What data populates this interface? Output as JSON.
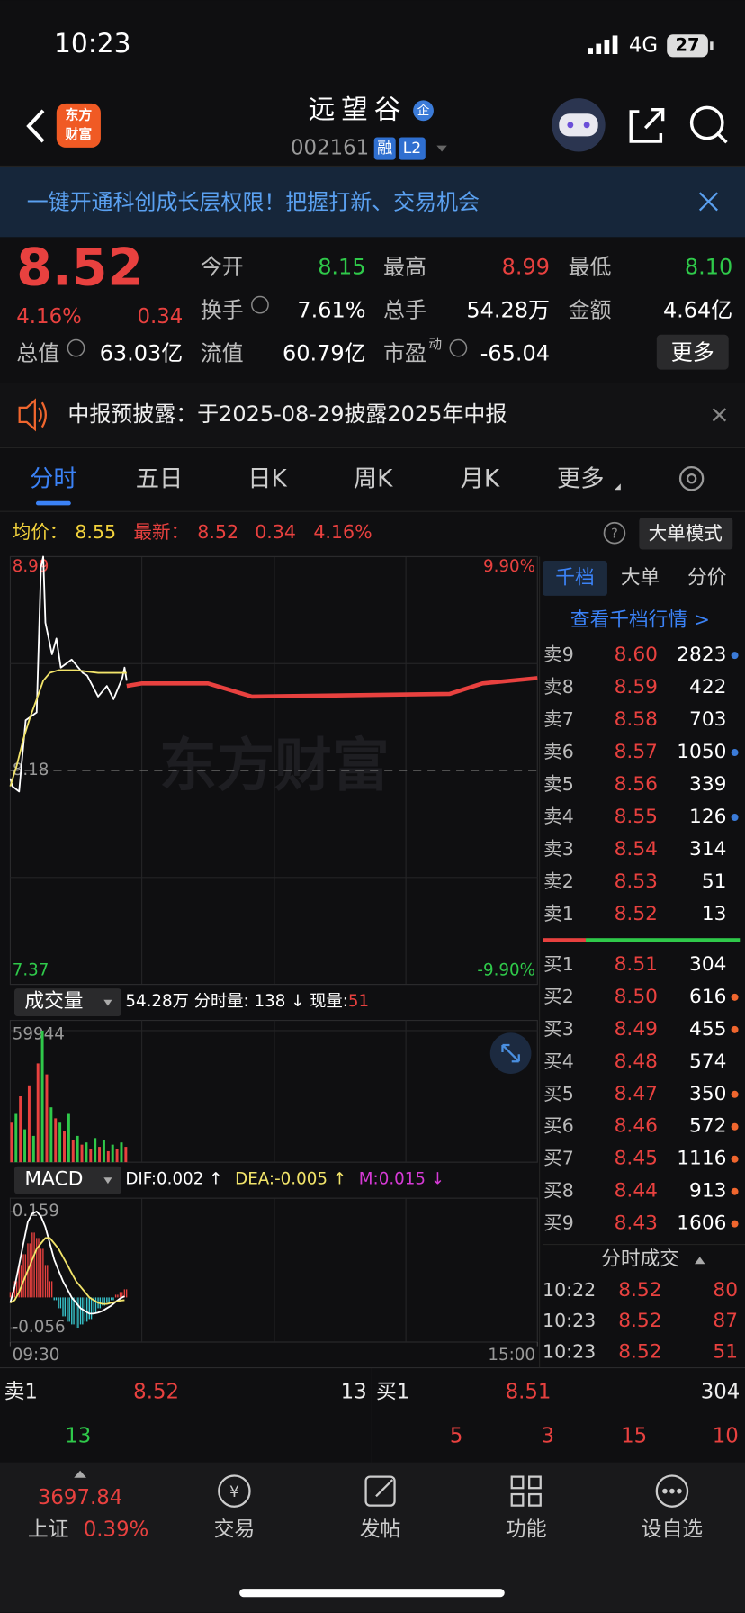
{
  "status": {
    "time": "10:23",
    "network": "4G",
    "battery": "27"
  },
  "header": {
    "logo": [
      "东方",
      "财富"
    ],
    "name": "远望谷",
    "badge": "企",
    "code": "002161",
    "tags": [
      "融",
      "L2"
    ]
  },
  "banner": "一键开通科创成长层权限！把握打新、交易机会",
  "quote": {
    "price": "8.52",
    "pct": "4.16%",
    "change": "0.34",
    "more": "更多",
    "fields": [
      {
        "label": "今开",
        "value": "8.15",
        "color": "#2fc94a"
      },
      {
        "label": "最高",
        "value": "8.99",
        "color": "#e8413f"
      },
      {
        "label": "最低",
        "value": "8.10",
        "color": "#2fc94a"
      },
      {
        "label": "换手",
        "value": "7.61%",
        "color": "#ffffff"
      },
      {
        "label": "总手",
        "value": "54.28万",
        "color": "#ffffff"
      },
      {
        "label": "金额",
        "value": "4.64亿",
        "color": "#ffffff"
      },
      {
        "label": "总值",
        "value": "63.03亿",
        "color": "#ffffff"
      },
      {
        "label": "流值",
        "value": "60.79亿",
        "color": "#ffffff"
      },
      {
        "label": "市盈",
        "sup": "动",
        "value": "-65.04",
        "color": "#ffffff"
      }
    ]
  },
  "notice": "中报预披露：于2025-08-29披露2025年中报",
  "tabs": [
    "分时",
    "五日",
    "日K",
    "周K",
    "月K",
    "更多"
  ],
  "info": {
    "avg_label": "均价：",
    "avg": "8.55",
    "last_label": "最新：",
    "last": "8.52",
    "change": "0.34",
    "pct": "4.16%",
    "mode": "大单模式"
  },
  "chart_data": [
    {
      "type": "line",
      "watermark": "东方财富",
      "xlim": [
        0,
        240
      ],
      "ylim": [
        7.37,
        8.99
      ],
      "yticks": [
        8.99,
        8.18,
        7.37
      ],
      "y2lim": [
        -9.9,
        9.9
      ],
      "y2ticks": [
        {
          "value": 9.9,
          "label": "9.90%"
        },
        {
          "value": -9.9,
          "label": "-9.90%"
        }
      ],
      "series": [
        {
          "color": "#ffffff",
          "x": [
            0,
            1,
            4,
            7,
            12,
            14,
            15,
            16,
            19,
            21,
            23,
            28,
            33,
            35,
            40,
            44,
            47,
            51,
            52,
            53
          ],
          "values": [
            8.15,
            8.12,
            8.1,
            8.37,
            8.4,
            8.95,
            8.99,
            8.74,
            8.62,
            8.68,
            8.57,
            8.6,
            8.55,
            8.54,
            8.46,
            8.5,
            8.45,
            8.53,
            8.57,
            8.52
          ]
        },
        {
          "color": "#f2e46a",
          "x": [
            0,
            3,
            6,
            9,
            12,
            15,
            18,
            22,
            30,
            40,
            53
          ],
          "values": [
            8.12,
            8.2,
            8.3,
            8.38,
            8.45,
            8.52,
            8.55,
            8.56,
            8.56,
            8.55,
            8.55
          ]
        },
        {
          "color": "#e8413f",
          "x": [
            53,
            60,
            90,
            110,
            200,
            215,
            240
          ],
          "values": [
            8.5,
            8.51,
            8.51,
            8.46,
            8.47,
            8.51,
            8.53
          ]
        }
      ]
    },
    {
      "type": "bar",
      "title": "成交量",
      "summary": "54.28万 分时量: 138 ↓ 现量: ",
      "current": "51",
      "xlim": [
        0,
        240
      ],
      "ylim": [
        0,
        59944
      ],
      "yticks": [
        59944
      ],
      "x": [
        0,
        2,
        4,
        6,
        8,
        10,
        12,
        14,
        16,
        18,
        20,
        22,
        24,
        26,
        28,
        30,
        32,
        34,
        36,
        38,
        40,
        42,
        44,
        46,
        48,
        50,
        52
      ],
      "values": [
        18000,
        22000,
        30000,
        15000,
        35000,
        12000,
        45000,
        59944,
        40000,
        25000,
        20000,
        18000,
        14000,
        22000,
        10000,
        12000,
        8000,
        9000,
        6000,
        11000,
        7000,
        10000,
        5000,
        8000,
        6000,
        9000,
        7000
      ],
      "colors": [
        "#e8413f",
        "#2fc94a",
        "#e8413f",
        "#2fc94a",
        "#e8413f",
        "#2fc94a",
        "#e8413f",
        "#2fc94a",
        "#e8413f",
        "#2fc94a",
        "#e8413f",
        "#2fc94a",
        "#e8413f",
        "#2fc94a",
        "#e8413f",
        "#2fc94a",
        "#e8413f",
        "#2fc94a",
        "#e8413f",
        "#2fc94a",
        "#e8413f",
        "#2fc94a",
        "#e8413f",
        "#2fc94a",
        "#e8413f",
        "#2fc94a",
        "#e8413f"
      ]
    },
    {
      "type": "macd",
      "title": "MACD",
      "legend": [
        {
          "text": "DIF:0.002 ↑",
          "color": "#ffffff"
        },
        {
          "text": "DEA:-0.005 ↑",
          "color": "#f2e46a"
        },
        {
          "text": "M:0.015 ↓",
          "color": "#d63ad6"
        }
      ],
      "xlim": [
        0,
        240
      ],
      "xticks": [
        {
          "value": 0,
          "label": "09:30"
        },
        {
          "value": 240,
          "label": "15:00"
        }
      ],
      "ylim": [
        -0.056,
        0.159
      ],
      "yticks": [
        0.159,
        -0.056
      ],
      "pos_color": "#e8413f",
      "neg_color": "#38c8d0",
      "dif_color": "#ffffff",
      "dea_color": "#f2e46a",
      "x": [
        0,
        2,
        4,
        6,
        8,
        10,
        12,
        14,
        16,
        18,
        20,
        22,
        24,
        26,
        28,
        30,
        32,
        34,
        36,
        38,
        40,
        42,
        44,
        46,
        48,
        50,
        52
      ],
      "m": [
        0.01,
        0.03,
        0.06,
        0.08,
        0.1,
        0.12,
        0.11,
        0.09,
        0.06,
        0.03,
        -0.005,
        -0.02,
        -0.035,
        -0.045,
        -0.05,
        -0.056,
        -0.05,
        -0.045,
        -0.04,
        -0.03,
        -0.02,
        -0.015,
        -0.01,
        -0.005,
        0.005,
        0.01,
        0.015
      ],
      "dif": [
        -0.01,
        0.02,
        0.06,
        0.1,
        0.14,
        0.155,
        0.159,
        0.15,
        0.13,
        0.1,
        0.07,
        0.05,
        0.03,
        0.015,
        0,
        -0.01,
        -0.02,
        -0.025,
        -0.03,
        -0.03,
        -0.028,
        -0.025,
        -0.02,
        -0.015,
        -0.008,
        -0.002,
        0.002
      ],
      "dea": [
        -0.01,
        -0.005,
        0.01,
        0.03,
        0.05,
        0.07,
        0.09,
        0.1,
        0.11,
        0.11,
        0.1,
        0.09,
        0.075,
        0.06,
        0.045,
        0.03,
        0.02,
        0.01,
        0,
        -0.005,
        -0.01,
        -0.012,
        -0.012,
        -0.01,
        -0.008,
        -0.006,
        -0.005
      ]
    }
  ],
  "orderbook": {
    "tabs": [
      "千档",
      "大单",
      "分价"
    ],
    "link": "查看千档行情 >",
    "asks": [
      {
        "label": "卖9",
        "price": "8.60",
        "vol": "2823",
        "dot": "#3b7bd8"
      },
      {
        "label": "卖8",
        "price": "8.59",
        "vol": "422"
      },
      {
        "label": "卖7",
        "price": "8.58",
        "vol": "703"
      },
      {
        "label": "卖6",
        "price": "8.57",
        "vol": "1050",
        "dot": "#3b7bd8"
      },
      {
        "label": "卖5",
        "price": "8.56",
        "vol": "339"
      },
      {
        "label": "卖4",
        "price": "8.55",
        "vol": "126",
        "dot": "#3b7bd8"
      },
      {
        "label": "卖3",
        "price": "8.54",
        "vol": "314"
      },
      {
        "label": "卖2",
        "price": "8.53",
        "vol": "51"
      },
      {
        "label": "卖1",
        "price": "8.52",
        "vol": "13"
      }
    ],
    "bids": [
      {
        "label": "买1",
        "price": "8.51",
        "vol": "304"
      },
      {
        "label": "买2",
        "price": "8.50",
        "vol": "616",
        "dot": "#f0662e"
      },
      {
        "label": "买3",
        "price": "8.49",
        "vol": "455",
        "dot": "#f0662e"
      },
      {
        "label": "买4",
        "price": "8.48",
        "vol": "574"
      },
      {
        "label": "买5",
        "price": "8.47",
        "vol": "350",
        "dot": "#f0662e"
      },
      {
        "label": "买6",
        "price": "8.46",
        "vol": "572",
        "dot": "#f0662e"
      },
      {
        "label": "买7",
        "price": "8.45",
        "vol": "1116",
        "dot": "#f0662e"
      },
      {
        "label": "买8",
        "price": "8.44",
        "vol": "913",
        "dot": "#f0662e"
      },
      {
        "label": "买9",
        "price": "8.43",
        "vol": "1606",
        "dot": "#f0662e"
      }
    ],
    "trades_title": "分时成交",
    "trades": [
      [
        "10:22",
        "8.52",
        "80"
      ],
      [
        "10:23",
        "8.52",
        "87"
      ],
      [
        "10:23",
        "8.52",
        "51"
      ]
    ]
  },
  "level1": {
    "sell": {
      "label": "卖1",
      "price": "8.52",
      "vol": "13"
    },
    "buy": {
      "label": "买1",
      "price": "8.51",
      "vol": "304"
    },
    "sell_queue": [
      "13"
    ],
    "buy_queue": [
      "5",
      "3",
      "15",
      "10"
    ]
  },
  "nav": {
    "index": {
      "value": "3697.84",
      "name": "上证",
      "pct": "0.39%"
    },
    "items": [
      "交易",
      "发帖",
      "功能",
      "设自选"
    ]
  }
}
